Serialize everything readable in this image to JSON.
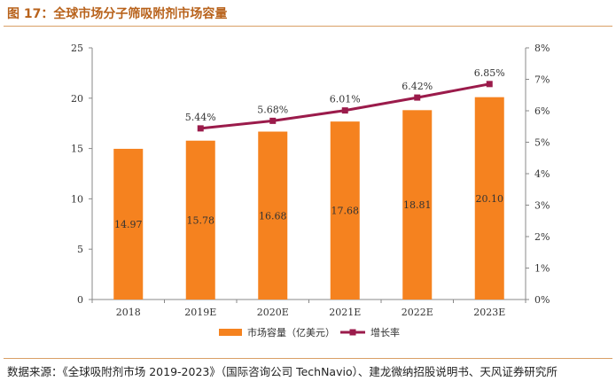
{
  "figure": {
    "title": "图 17：全球市场分子筛吸附剂市场容量",
    "source": "数据来源：《全球吸附剂市场 2019-2023》（国际咨询公司 TechNavio）、建龙微纳招股说明书、天风证券研究所"
  },
  "colors": {
    "bar": "#f5821f",
    "line": "#9b1b4b",
    "title": "#b8621b",
    "rule": "#d9a066"
  },
  "chart_data": {
    "type": "bar+line",
    "categories": [
      "2018",
      "2019E",
      "2020E",
      "2021E",
      "2022E",
      "2023E"
    ],
    "series": [
      {
        "name": "市场容量（亿美元）",
        "type": "bar",
        "axis": "left",
        "values": [
          14.97,
          15.78,
          16.68,
          17.68,
          18.81,
          20.1
        ],
        "labels": [
          "14.97",
          "15.78",
          "16.68",
          "17.68",
          "18.81",
          "20.10"
        ]
      },
      {
        "name": "增长率",
        "type": "line",
        "axis": "right",
        "values": [
          null,
          5.44,
          5.68,
          6.01,
          6.42,
          6.85
        ],
        "labels": [
          "",
          "5.44%",
          "5.68%",
          "6.01%",
          "6.42%",
          "6.85%"
        ]
      }
    ],
    "y_left": {
      "min": 0,
      "max": 25,
      "ticks": [
        "0",
        "5",
        "10",
        "15",
        "20",
        "25"
      ]
    },
    "y_right": {
      "min": 0,
      "max": 8,
      "ticks": [
        "0%",
        "1%",
        "2%",
        "3%",
        "4%",
        "5%",
        "6%",
        "7%",
        "8%"
      ]
    },
    "legend_position": "bottom",
    "grid": false
  }
}
